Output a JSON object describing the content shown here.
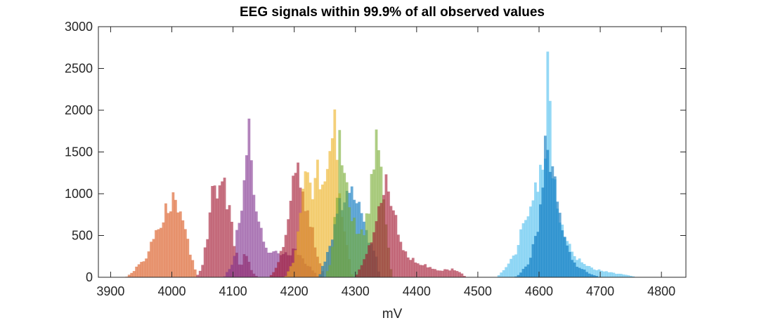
{
  "chart_data": {
    "type": "histogram",
    "title": "EEG signals within 99.9% of all observed values",
    "xlabel": "mV",
    "ylabel": "",
    "xlim": [
      3880,
      4840
    ],
    "ylim": [
      0,
      3000
    ],
    "x_ticks": [
      3900,
      4000,
      4100,
      4200,
      4300,
      4400,
      4500,
      4600,
      4700,
      4800
    ],
    "y_ticks": [
      0,
      500,
      1000,
      1500,
      2000,
      2500,
      3000
    ],
    "grid": false,
    "legend": "none",
    "bin_width_mV": 4,
    "series": [
      {
        "color": "#D95319",
        "range": [
          3925,
          4040
        ],
        "peaks": [
          [
            3955,
            200
          ],
          [
            3980,
            600
          ],
          [
            3995,
            870
          ],
          [
            4005,
            1040
          ],
          [
            4018,
            700
          ],
          [
            4030,
            300
          ],
          [
            4038,
            100
          ]
        ]
      },
      {
        "color": "#A2142F",
        "range": [
          4040,
          4140
        ],
        "peaks": [
          [
            4050,
            150
          ],
          [
            4058,
            500
          ],
          [
            4068,
            1100
          ],
          [
            4076,
            950
          ],
          [
            4082,
            1280
          ],
          [
            4090,
            800
          ],
          [
            4095,
            850
          ],
          [
            4102,
            400
          ],
          [
            4112,
            120
          ],
          [
            4120,
            300
          ],
          [
            4130,
            80
          ]
        ]
      },
      {
        "color": "#7E2F8E",
        "range": [
          4085,
          4240
        ],
        "peaks": [
          [
            4100,
            180
          ],
          [
            4108,
            600
          ],
          [
            4116,
            1000
          ],
          [
            4122,
            1550
          ],
          [
            4126,
            1900
          ],
          [
            4132,
            1100
          ],
          [
            4140,
            850
          ],
          [
            4148,
            500
          ],
          [
            4158,
            280
          ],
          [
            4170,
            350
          ],
          [
            4180,
            300
          ],
          [
            4190,
            250
          ],
          [
            4200,
            350
          ],
          [
            4215,
            200
          ]
        ]
      },
      {
        "color": "#A2142F",
        "range": [
          4160,
          4250
        ],
        "peaks": [
          [
            4175,
            180
          ],
          [
            4188,
            600
          ],
          [
            4198,
            1200
          ],
          [
            4203,
            1500
          ],
          [
            4208,
            1350
          ],
          [
            4215,
            1000
          ],
          [
            4225,
            700
          ],
          [
            4235,
            350
          ],
          [
            4245,
            100
          ]
        ]
      },
      {
        "color": "#EDB120",
        "range": [
          4185,
          4295
        ],
        "peaks": [
          [
            4200,
            200
          ],
          [
            4212,
            1000
          ],
          [
            4220,
            1300
          ],
          [
            4230,
            1000
          ],
          [
            4240,
            1300
          ],
          [
            4248,
            1050
          ],
          [
            4255,
            1600
          ],
          [
            4262,
            1750
          ],
          [
            4266,
            2230
          ],
          [
            4272,
            1300
          ],
          [
            4280,
            600
          ],
          [
            4290,
            200
          ]
        ]
      },
      {
        "color": "#0072BD",
        "range": [
          4240,
          4340
        ],
        "peaks": [
          [
            4250,
            200
          ],
          [
            4262,
            500
          ],
          [
            4272,
            800
          ],
          [
            4280,
            950
          ],
          [
            4288,
            1000
          ],
          [
            4295,
            1050
          ],
          [
            4302,
            1000
          ],
          [
            4310,
            900
          ],
          [
            4318,
            600
          ],
          [
            4325,
            400
          ],
          [
            4335,
            200
          ]
        ]
      },
      {
        "color": "#77AC30",
        "range": [
          4250,
          4360
        ],
        "peaks": [
          [
            4260,
            200
          ],
          [
            4268,
            800
          ],
          [
            4274,
            1600
          ],
          [
            4280,
            1350
          ],
          [
            4285,
            1100
          ],
          [
            4292,
            800
          ],
          [
            4300,
            600
          ],
          [
            4312,
            500
          ],
          [
            4322,
            800
          ],
          [
            4330,
            1500
          ],
          [
            4336,
            1950
          ],
          [
            4342,
            1400
          ],
          [
            4350,
            700
          ],
          [
            4356,
            200
          ]
        ]
      },
      {
        "color": "#A2142F",
        "range": [
          4300,
          4480
        ],
        "peaks": [
          [
            4310,
            150
          ],
          [
            4322,
            380
          ],
          [
            4332,
            620
          ],
          [
            4342,
            880
          ],
          [
            4350,
            1150
          ],
          [
            4356,
            1050
          ],
          [
            4364,
            750
          ],
          [
            4372,
            450
          ],
          [
            4385,
            250
          ],
          [
            4400,
            180
          ],
          [
            4420,
            120
          ],
          [
            4440,
            80
          ],
          [
            4460,
            100
          ],
          [
            4475,
            40
          ]
        ]
      },
      {
        "color": "#4DBEEE",
        "range": [
          4530,
          4760
        ],
        "peaks": [
          [
            4545,
            100
          ],
          [
            4565,
            350
          ],
          [
            4580,
            800
          ],
          [
            4592,
            1050
          ],
          [
            4600,
            1200
          ],
          [
            4610,
            1650
          ],
          [
            4616,
            2750
          ],
          [
            4620,
            1400
          ],
          [
            4630,
            850
          ],
          [
            4645,
            400
          ],
          [
            4665,
            200
          ],
          [
            4690,
            100
          ],
          [
            4720,
            50
          ],
          [
            4750,
            20
          ]
        ]
      },
      {
        "color": "#0072BD",
        "range": [
          4560,
          4700
        ],
        "peaks": [
          [
            4570,
            50
          ],
          [
            4585,
            200
          ],
          [
            4598,
            600
          ],
          [
            4606,
            1200
          ],
          [
            4612,
            1650
          ],
          [
            4618,
            1400
          ],
          [
            4624,
            1300
          ],
          [
            4630,
            900
          ],
          [
            4638,
            600
          ],
          [
            4648,
            300
          ],
          [
            4660,
            150
          ],
          [
            4680,
            50
          ]
        ]
      }
    ]
  }
}
